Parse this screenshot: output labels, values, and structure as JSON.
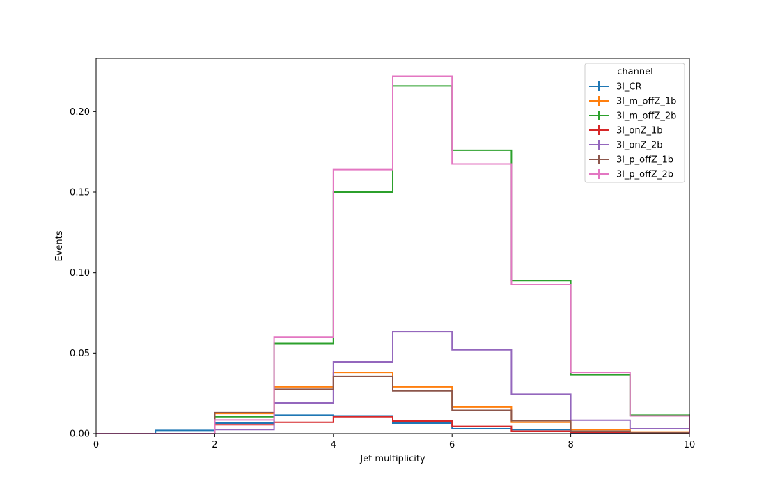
{
  "chart_data": {
    "type": "line",
    "drawstyle": "step-histogram",
    "xlabel": "Jet multiplicity",
    "ylabel": "Events",
    "xlim": [
      0,
      10
    ],
    "ylim": [
      0,
      0.233
    ],
    "x_ticks": [
      0,
      2,
      4,
      6,
      8,
      10
    ],
    "y_ticks": [
      0.0,
      0.05,
      0.1,
      0.15,
      0.2
    ],
    "x_tick_labels": [
      "0",
      "2",
      "4",
      "6",
      "8",
      "10"
    ],
    "y_tick_labels": [
      "0.00",
      "0.05",
      "0.10",
      "0.15",
      "0.20"
    ],
    "bin_edges": [
      0,
      1,
      2,
      3,
      4,
      5,
      6,
      7,
      8,
      9,
      10
    ],
    "legend": {
      "title": "channel",
      "placement": "top-right"
    },
    "grid": false,
    "series": [
      {
        "name": "3l_CR",
        "color": "#1f77b4",
        "values": [
          0.0,
          0.002,
          0.0065,
          0.0115,
          0.011,
          0.0065,
          0.003,
          0.0025,
          0.0005,
          0.0001
        ]
      },
      {
        "name": "3l_m_offZ_1b",
        "color": "#ff7f0e",
        "values": [
          0.0,
          0.0,
          0.0125,
          0.029,
          0.038,
          0.029,
          0.0165,
          0.007,
          0.0025,
          0.001
        ]
      },
      {
        "name": "3l_m_offZ_2b",
        "color": "#2ca02c",
        "values": [
          0.0,
          0.0,
          0.0105,
          0.056,
          0.15,
          0.216,
          0.176,
          0.095,
          0.0365,
          0.0115
        ]
      },
      {
        "name": "3l_onZ_1b",
        "color": "#d62728",
        "values": [
          0.0,
          0.0,
          0.0055,
          0.007,
          0.0105,
          0.0078,
          0.0045,
          0.0015,
          0.0008,
          0.0003
        ]
      },
      {
        "name": "3l_onZ_2b",
        "color": "#9467bd",
        "values": [
          0.0,
          0.0,
          0.0025,
          0.019,
          0.0445,
          0.0635,
          0.052,
          0.0245,
          0.0083,
          0.003
        ]
      },
      {
        "name": "3l_p_offZ_1b",
        "color": "#8c564b",
        "values": [
          0.0,
          0.0,
          0.013,
          0.0275,
          0.0355,
          0.0265,
          0.0145,
          0.008,
          0.0015,
          0.0005
        ]
      },
      {
        "name": "3l_p_offZ_2b",
        "color": "#e377c2",
        "values": [
          0.0,
          0.0,
          0.0085,
          0.06,
          0.164,
          0.222,
          0.1675,
          0.0925,
          0.038,
          0.011
        ]
      }
    ]
  }
}
